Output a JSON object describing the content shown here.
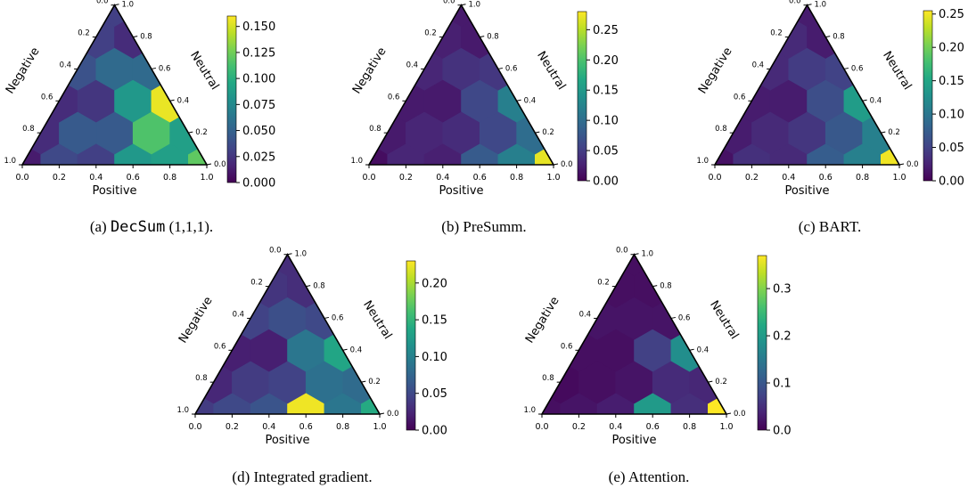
{
  "colormap": [
    "#440154",
    "#482475",
    "#414487",
    "#355f8d",
    "#2a788e",
    "#21918c",
    "#22a884",
    "#44bf70",
    "#7ad151",
    "#bddf26",
    "#fde725"
  ],
  "chart_data": [
    {
      "type": "ternary-hexbin",
      "caption_prefix": "(a) ",
      "caption_mono": "DecSum",
      "caption_suffix": " (1,1,1).",
      "xlabel": "Positive",
      "left_label": "Negative",
      "right_label": "Neutral",
      "ticks": [
        "0.0",
        "0.2",
        "0.4",
        "0.6",
        "0.8",
        "1.0"
      ],
      "cbar_max": 0.16,
      "cbar_ticks": [
        "0.000",
        "0.025",
        "0.050",
        "0.075",
        "0.100",
        "0.125",
        "0.150"
      ],
      "cbar_tick_values": [
        0,
        0.025,
        0.05,
        0.075,
        0.1,
        0.125,
        0.15
      ],
      "cells": [
        {
          "p": 0.0,
          "u": 0.0,
          "v": 0.012
        },
        {
          "p": 0.2,
          "u": 0.0,
          "v": 0.035
        },
        {
          "p": 0.4,
          "u": 0.0,
          "v": 0.03
        },
        {
          "p": 0.6,
          "u": 0.0,
          "v": 0.085
        },
        {
          "p": 0.8,
          "u": 0.0,
          "v": 0.09
        },
        {
          "p": 1.0,
          "u": 0.0,
          "v": 0.12
        },
        {
          "p": 0.1,
          "u": 0.2,
          "v": 0.02
        },
        {
          "p": 0.3,
          "u": 0.2,
          "v": 0.045
        },
        {
          "p": 0.5,
          "u": 0.2,
          "v": 0.045
        },
        {
          "p": 0.7,
          "u": 0.2,
          "v": 0.115
        },
        {
          "p": 0.9,
          "u": 0.2,
          "v": 0.09
        },
        {
          "p": 0.2,
          "u": 0.4,
          "v": 0.02
        },
        {
          "p": 0.4,
          "u": 0.4,
          "v": 0.025
        },
        {
          "p": 0.6,
          "u": 0.4,
          "v": 0.085
        },
        {
          "p": 0.8,
          "u": 0.4,
          "v": 0.155
        },
        {
          "p": 0.3,
          "u": 0.6,
          "v": 0.04
        },
        {
          "p": 0.5,
          "u": 0.6,
          "v": 0.055
        },
        {
          "p": 0.7,
          "u": 0.6,
          "v": 0.055
        },
        {
          "p": 0.4,
          "u": 0.8,
          "v": 0.03
        },
        {
          "p": 0.6,
          "u": 0.8,
          "v": 0.02
        },
        {
          "p": 0.5,
          "u": 1.0,
          "v": 0.03
        }
      ]
    },
    {
      "type": "ternary-hexbin",
      "caption_prefix": "(b) PreSumm.",
      "caption_mono": "",
      "caption_suffix": "",
      "xlabel": "Positive",
      "left_label": "Negative",
      "right_label": "Neutral",
      "ticks": [
        "0.0",
        "0.2",
        "0.4",
        "0.6",
        "0.8",
        "1.0"
      ],
      "cbar_max": 0.28,
      "cbar_ticks": [
        "0.00",
        "0.05",
        "0.10",
        "0.15",
        "0.20",
        "0.25"
      ],
      "cbar_tick_values": [
        0,
        0.05,
        0.1,
        0.15,
        0.2,
        0.25
      ],
      "cells": [
        {
          "p": 0.0,
          "u": 0.0,
          "v": 0.01
        },
        {
          "p": 0.2,
          "u": 0.0,
          "v": 0.03
        },
        {
          "p": 0.4,
          "u": 0.0,
          "v": 0.025
        },
        {
          "p": 0.6,
          "u": 0.0,
          "v": 0.08
        },
        {
          "p": 0.8,
          "u": 0.0,
          "v": 0.12
        },
        {
          "p": 1.0,
          "u": 0.0,
          "v": 0.27
        },
        {
          "p": 0.1,
          "u": 0.2,
          "v": 0.02
        },
        {
          "p": 0.3,
          "u": 0.2,
          "v": 0.03
        },
        {
          "p": 0.5,
          "u": 0.2,
          "v": 0.035
        },
        {
          "p": 0.7,
          "u": 0.2,
          "v": 0.06
        },
        {
          "p": 0.9,
          "u": 0.2,
          "v": 0.1
        },
        {
          "p": 0.2,
          "u": 0.4,
          "v": 0.02
        },
        {
          "p": 0.4,
          "u": 0.4,
          "v": 0.02
        },
        {
          "p": 0.6,
          "u": 0.4,
          "v": 0.06
        },
        {
          "p": 0.8,
          "u": 0.4,
          "v": 0.12
        },
        {
          "p": 0.3,
          "u": 0.6,
          "v": 0.03
        },
        {
          "p": 0.5,
          "u": 0.6,
          "v": 0.04
        },
        {
          "p": 0.7,
          "u": 0.6,
          "v": 0.045
        },
        {
          "p": 0.4,
          "u": 0.8,
          "v": 0.025
        },
        {
          "p": 0.6,
          "u": 0.8,
          "v": 0.02
        },
        {
          "p": 0.5,
          "u": 1.0,
          "v": 0.02
        }
      ]
    },
    {
      "type": "ternary-hexbin",
      "caption_prefix": "(c) BART.",
      "caption_mono": "",
      "caption_suffix": "",
      "xlabel": "Positive",
      "left_label": "Negative",
      "right_label": "Neutral",
      "ticks": [
        "0.0",
        "0.2",
        "0.4",
        "0.6",
        "0.8",
        "1.0"
      ],
      "cbar_max": 0.255,
      "cbar_ticks": [
        "0.00",
        "0.05",
        "0.10",
        "0.15",
        "0.20",
        "0.25"
      ],
      "cbar_tick_values": [
        0,
        0.05,
        0.1,
        0.15,
        0.2,
        0.25
      ],
      "cells": [
        {
          "p": 0.0,
          "u": 0.0,
          "v": 0.012
        },
        {
          "p": 0.2,
          "u": 0.0,
          "v": 0.035
        },
        {
          "p": 0.4,
          "u": 0.0,
          "v": 0.03
        },
        {
          "p": 0.6,
          "u": 0.0,
          "v": 0.075
        },
        {
          "p": 0.8,
          "u": 0.0,
          "v": 0.11
        },
        {
          "p": 1.0,
          "u": 0.0,
          "v": 0.25
        },
        {
          "p": 0.1,
          "u": 0.2,
          "v": 0.02
        },
        {
          "p": 0.3,
          "u": 0.2,
          "v": 0.03
        },
        {
          "p": 0.5,
          "u": 0.2,
          "v": 0.04
        },
        {
          "p": 0.7,
          "u": 0.2,
          "v": 0.07
        },
        {
          "p": 0.9,
          "u": 0.2,
          "v": 0.11
        },
        {
          "p": 0.2,
          "u": 0.4,
          "v": 0.02
        },
        {
          "p": 0.4,
          "u": 0.4,
          "v": 0.02
        },
        {
          "p": 0.6,
          "u": 0.4,
          "v": 0.06
        },
        {
          "p": 0.8,
          "u": 0.4,
          "v": 0.14
        },
        {
          "p": 0.3,
          "u": 0.6,
          "v": 0.03
        },
        {
          "p": 0.5,
          "u": 0.6,
          "v": 0.045
        },
        {
          "p": 0.7,
          "u": 0.6,
          "v": 0.05
        },
        {
          "p": 0.4,
          "u": 0.8,
          "v": 0.03
        },
        {
          "p": 0.6,
          "u": 0.8,
          "v": 0.02
        },
        {
          "p": 0.5,
          "u": 1.0,
          "v": 0.02
        }
      ]
    },
    {
      "type": "ternary-hexbin",
      "caption_prefix": "(d) Integrated gradient.",
      "caption_mono": "",
      "caption_suffix": "",
      "xlabel": "Positive",
      "left_label": "Negative",
      "right_label": "Neutral",
      "ticks": [
        "0.0",
        "0.2",
        "0.4",
        "0.6",
        "0.8",
        "1.0"
      ],
      "cbar_max": 0.23,
      "cbar_ticks": [
        "0.00",
        "0.05",
        "0.10",
        "0.15",
        "0.20"
      ],
      "cbar_tick_values": [
        0,
        0.05,
        0.1,
        0.15,
        0.2
      ],
      "cells": [
        {
          "p": 0.0,
          "u": 0.0,
          "v": 0.04
        },
        {
          "p": 0.2,
          "u": 0.0,
          "v": 0.05
        },
        {
          "p": 0.4,
          "u": 0.0,
          "v": 0.06
        },
        {
          "p": 0.6,
          "u": 0.0,
          "v": 0.225
        },
        {
          "p": 0.8,
          "u": 0.0,
          "v": 0.09
        },
        {
          "p": 1.0,
          "u": 0.0,
          "v": 0.14
        },
        {
          "p": 0.1,
          "u": 0.2,
          "v": 0.025
        },
        {
          "p": 0.3,
          "u": 0.2,
          "v": 0.04
        },
        {
          "p": 0.5,
          "u": 0.2,
          "v": 0.045
        },
        {
          "p": 0.7,
          "u": 0.2,
          "v": 0.085
        },
        {
          "p": 0.9,
          "u": 0.2,
          "v": 0.08
        },
        {
          "p": 0.2,
          "u": 0.4,
          "v": 0.02
        },
        {
          "p": 0.4,
          "u": 0.4,
          "v": 0.02
        },
        {
          "p": 0.6,
          "u": 0.4,
          "v": 0.09
        },
        {
          "p": 0.8,
          "u": 0.4,
          "v": 0.135
        },
        {
          "p": 0.3,
          "u": 0.6,
          "v": 0.045
        },
        {
          "p": 0.5,
          "u": 0.6,
          "v": 0.055
        },
        {
          "p": 0.7,
          "u": 0.6,
          "v": 0.05
        },
        {
          "p": 0.4,
          "u": 0.8,
          "v": 0.035
        },
        {
          "p": 0.6,
          "u": 0.8,
          "v": 0.03
        },
        {
          "p": 0.5,
          "u": 1.0,
          "v": 0.03
        }
      ]
    },
    {
      "type": "ternary-hexbin",
      "caption_prefix": "(e) Attention.",
      "caption_mono": "",
      "caption_suffix": "",
      "xlabel": "Positive",
      "left_label": "Negative",
      "right_label": "Neutral",
      "ticks": [
        "0.0",
        "0.2",
        "0.4",
        "0.6",
        "0.8",
        "1.0"
      ],
      "cbar_max": 0.37,
      "cbar_ticks": [
        "0.0",
        "0.1",
        "0.2",
        "0.3"
      ],
      "cbar_tick_values": [
        0,
        0.1,
        0.2,
        0.3
      ],
      "cells": [
        {
          "p": 0.0,
          "u": 0.0,
          "v": 0.015
        },
        {
          "p": 0.2,
          "u": 0.0,
          "v": 0.02
        },
        {
          "p": 0.4,
          "u": 0.0,
          "v": 0.03
        },
        {
          "p": 0.6,
          "u": 0.0,
          "v": 0.2
        },
        {
          "p": 0.8,
          "u": 0.0,
          "v": 0.05
        },
        {
          "p": 1.0,
          "u": 0.0,
          "v": 0.37
        },
        {
          "p": 0.1,
          "u": 0.2,
          "v": 0.01
        },
        {
          "p": 0.3,
          "u": 0.2,
          "v": 0.015
        },
        {
          "p": 0.5,
          "u": 0.2,
          "v": 0.02
        },
        {
          "p": 0.7,
          "u": 0.2,
          "v": 0.045
        },
        {
          "p": 0.9,
          "u": 0.2,
          "v": 0.04
        },
        {
          "p": 0.2,
          "u": 0.4,
          "v": 0.015
        },
        {
          "p": 0.4,
          "u": 0.4,
          "v": 0.015
        },
        {
          "p": 0.6,
          "u": 0.4,
          "v": 0.07
        },
        {
          "p": 0.8,
          "u": 0.4,
          "v": 0.18
        },
        {
          "p": 0.3,
          "u": 0.6,
          "v": 0.02
        },
        {
          "p": 0.5,
          "u": 0.6,
          "v": 0.02
        },
        {
          "p": 0.7,
          "u": 0.6,
          "v": 0.02
        },
        {
          "p": 0.4,
          "u": 0.8,
          "v": 0.015
        },
        {
          "p": 0.6,
          "u": 0.8,
          "v": 0.015
        },
        {
          "p": 0.5,
          "u": 1.0,
          "v": 0.015
        }
      ]
    }
  ]
}
